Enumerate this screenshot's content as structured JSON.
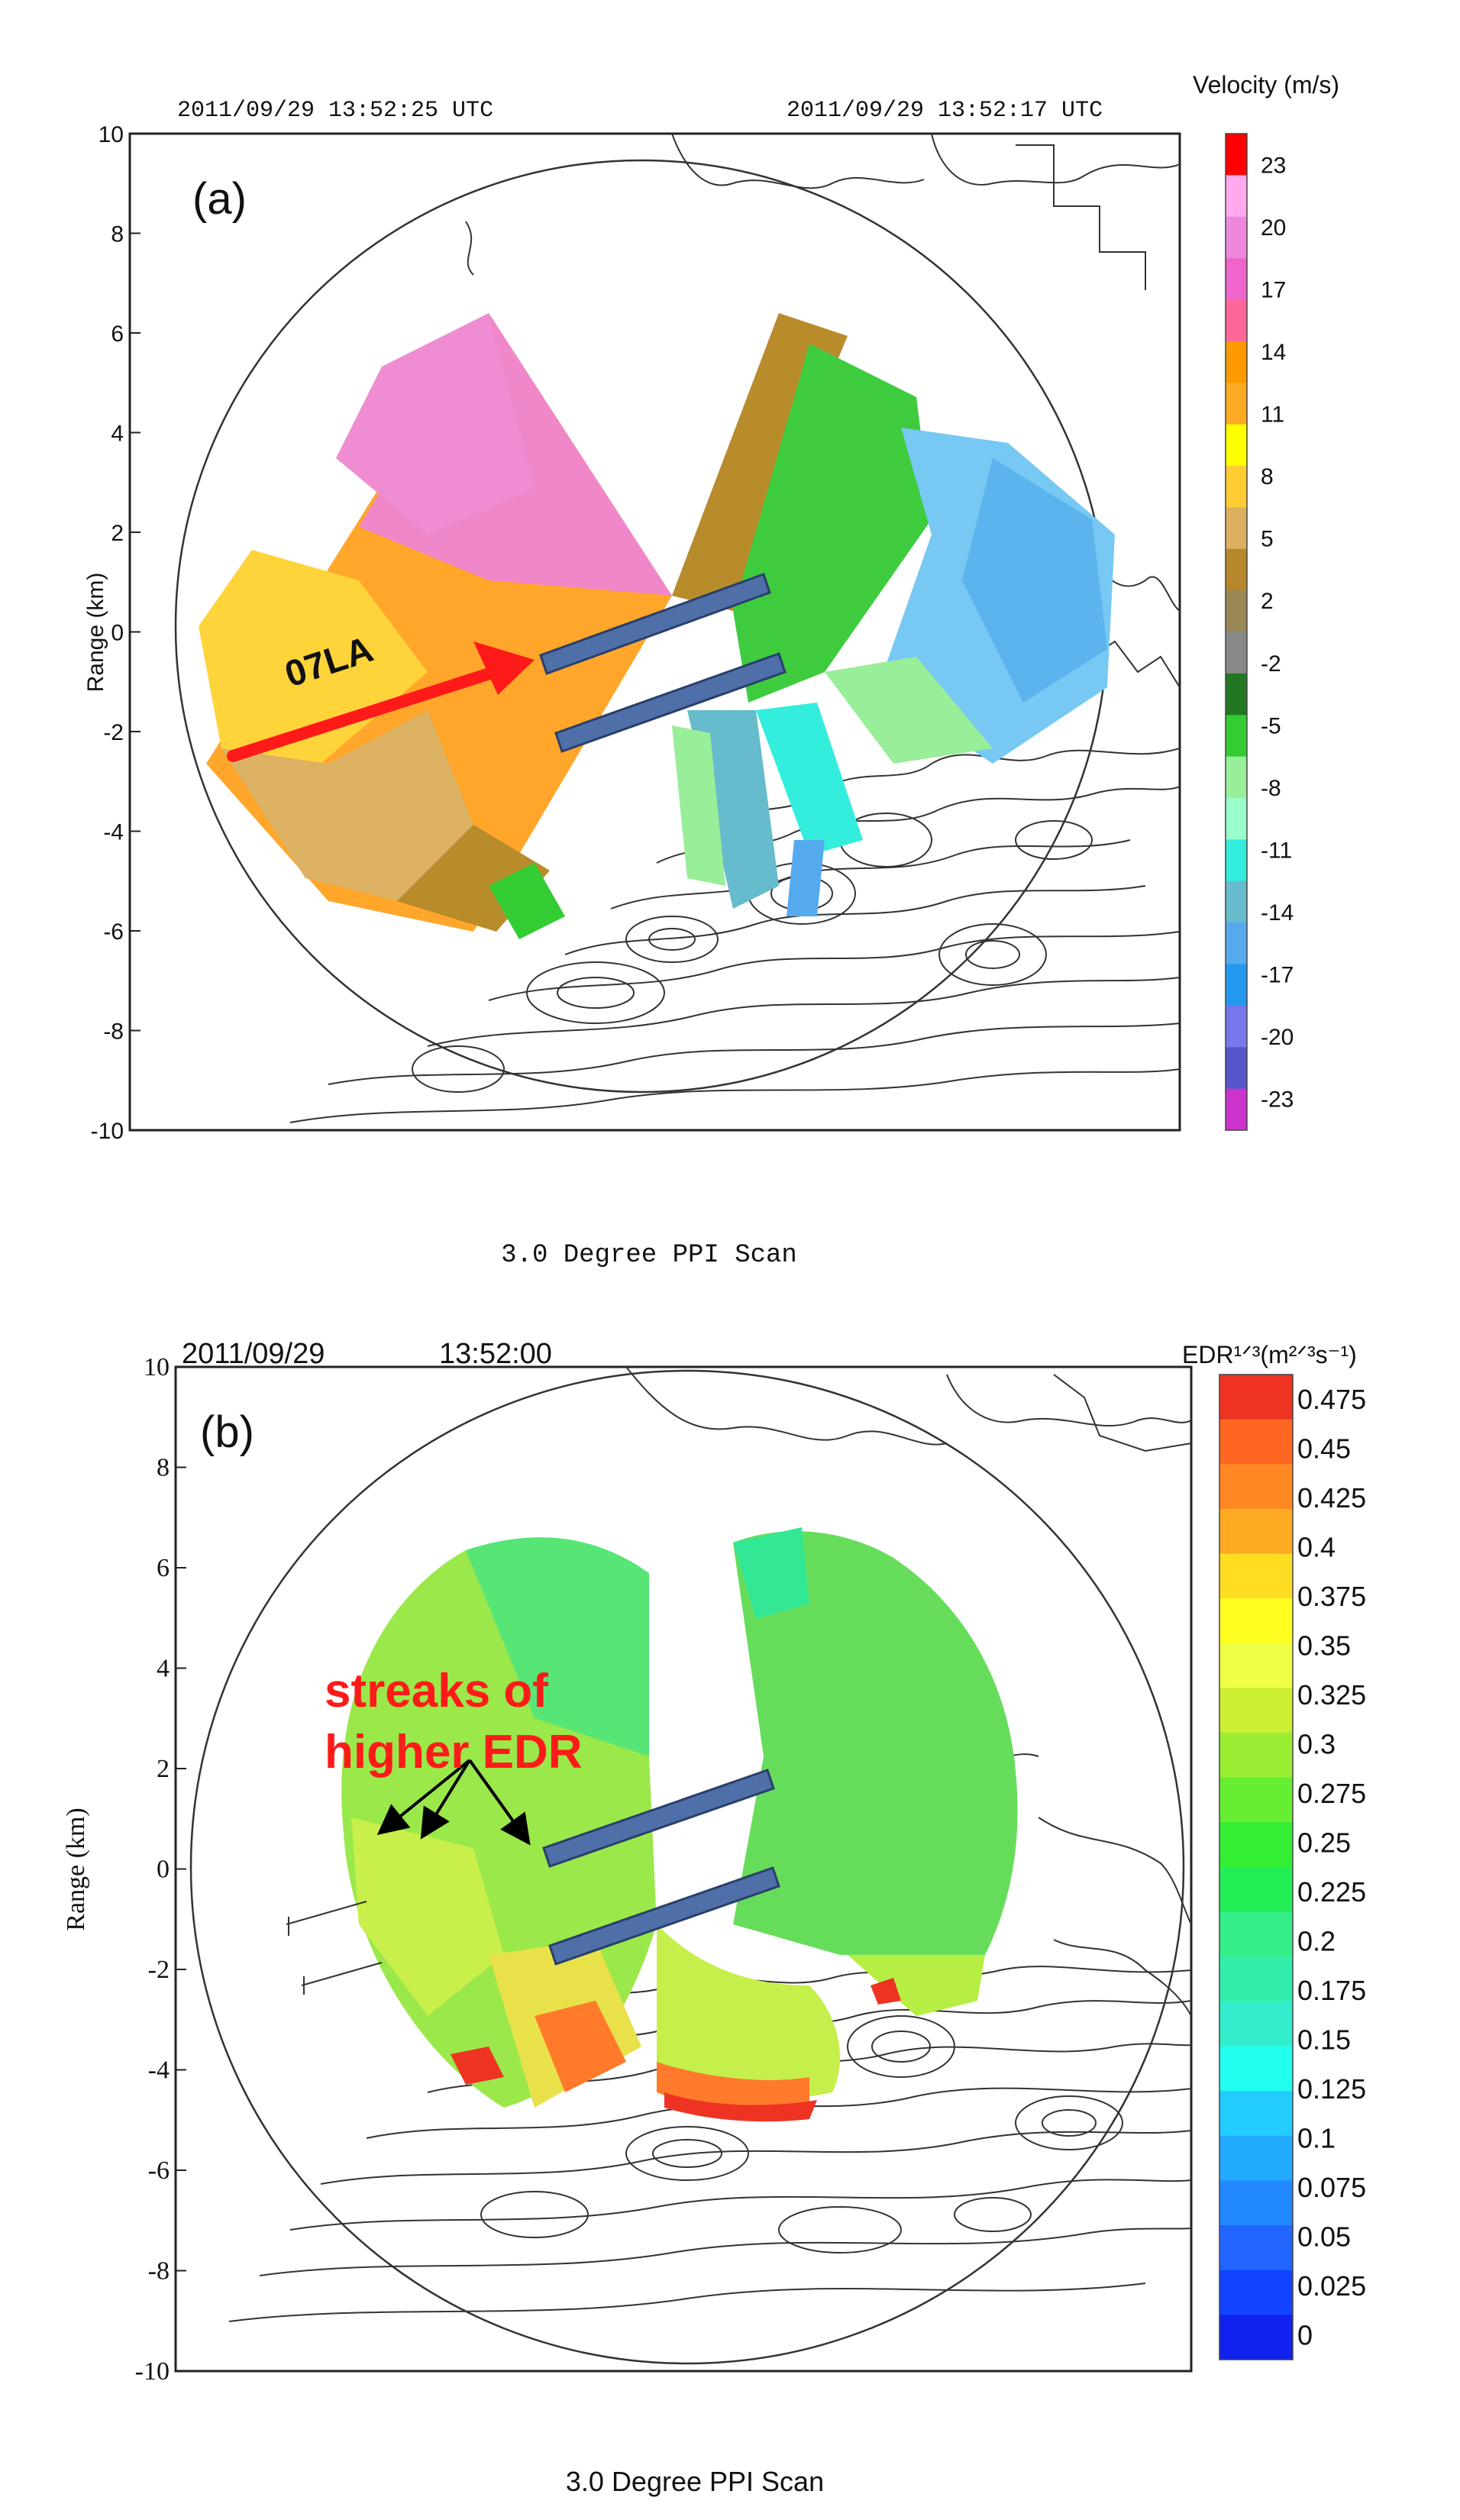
{
  "chart_data": [
    {
      "type": "heatmap",
      "panel_label": "(a)",
      "timestamp_left": "2011/09/29  13:52:25 UTC",
      "timestamp_right": "2011/09/29  13:52:17 UTC",
      "ylabel": "Range (km)",
      "yticks": [
        "10",
        "8",
        "6",
        "4",
        "2",
        "0",
        "-2",
        "-4",
        "-6",
        "-8",
        "-10"
      ],
      "ylim": [
        -10,
        10
      ],
      "scan_caption": "3.0 Degree PPI Scan",
      "annotation_runway": "07LA",
      "colorbar": {
        "title": "Velocity (m/s)",
        "labels": [
          "23",
          "20",
          "17",
          "14",
          "11",
          "8",
          "5",
          "2",
          "-2",
          "-5",
          "-8",
          "-11",
          "-14",
          "-17",
          "-20",
          "-23"
        ],
        "colors": [
          "#ff0000",
          "#ffaaee",
          "#ee88dd",
          "#ee66cc",
          "#ff6699",
          "#ff9900",
          "#ffaa22",
          "#ffff00",
          "#ffcc33",
          "#ddb060",
          "#b8862b",
          "#998855",
          "#888888",
          "#227722",
          "#33cc33",
          "#99ee99",
          "#99ffcc",
          "#33eedd",
          "#66bbcc",
          "#55aaee",
          "#2299ee",
          "#7777ee",
          "#5555cc",
          "#cc33cc"
        ]
      }
    },
    {
      "type": "heatmap",
      "panel_label": "(b)",
      "date": "2011/09/29",
      "time": "13:52:00",
      "ylabel": "Range (km)",
      "yticks": [
        "10",
        "8",
        "6",
        "4",
        "2",
        "0",
        "-2",
        "-4",
        "-6",
        "-8",
        "-10"
      ],
      "ylim": [
        -10,
        10
      ],
      "scan_caption": "3.0  Degree  PPI  Scan",
      "annotation": [
        "streaks of",
        "higher EDR"
      ],
      "colorbar": {
        "title": "EDR¹ᐟ³(m²ᐟ³s⁻¹)",
        "labels": [
          "0.475",
          "0.45",
          "0.425",
          "0.4",
          "0.375",
          "0.35",
          "0.325",
          "0.3",
          "0.275",
          "0.25",
          "0.225",
          "0.2",
          "0.175",
          "0.15",
          "0.125",
          "0.1",
          "0.075",
          "0.05",
          "0.025",
          "0"
        ],
        "colors": [
          "#ee3322",
          "#ff6622",
          "#ff8822",
          "#ffaa22",
          "#ffdd22",
          "#ffff22",
          "#eeff44",
          "#ccee33",
          "#99ee33",
          "#66ee33",
          "#33ee33",
          "#22ee55",
          "#33ee88",
          "#33eeaa",
          "#33eecc",
          "#22ffee",
          "#22ccff",
          "#22aaff",
          "#2288ff",
          "#2266ff",
          "#1144ff",
          "#1122ee"
        ]
      }
    }
  ]
}
